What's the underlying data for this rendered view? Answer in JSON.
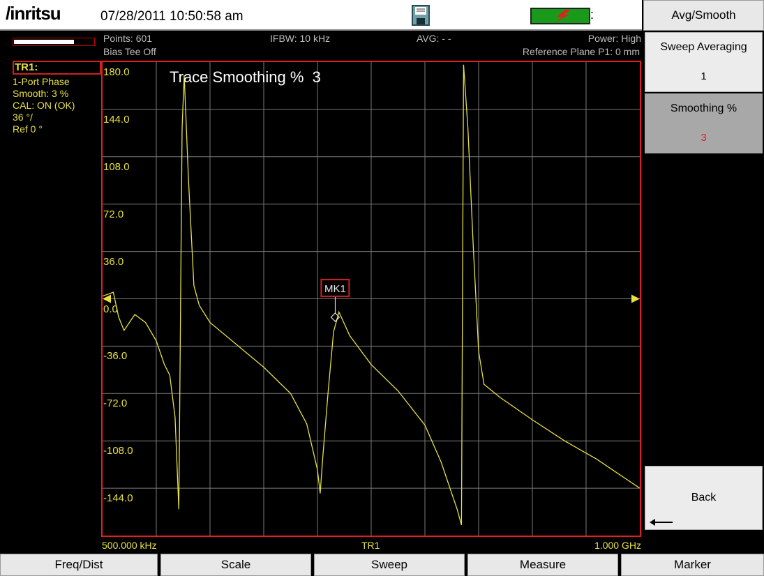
{
  "app": {
    "brand": "/inritsu",
    "datetime": "07/28/2011 10:50:58 am"
  },
  "header": {
    "points": "Points: 601",
    "bias_tee": "Bias Tee Off",
    "ifbw": "IFBW: 10 kHz",
    "avg": "AVG: - -",
    "power": "Power: High",
    "reference_plane": "Reference Plane P1: 0 mm"
  },
  "trace_info": {
    "trace": "TR1:",
    "measurement": "1-Port Phase",
    "smooth": "Smooth: 3 %",
    "cal": "CAL: ON (OK)",
    "scale": "36 °/",
    "ref": "Ref 0 °"
  },
  "softkeys": {
    "menu_title": "Avg/Smooth",
    "sweep_averaging_label": "Sweep Averaging",
    "sweep_averaging_value": "1",
    "smoothing_label": "Smoothing %",
    "smoothing_value": "3",
    "back_label": "Back"
  },
  "bottom_menu": [
    "Freq/Dist",
    "Scale",
    "Sweep",
    "Measure",
    "Marker"
  ],
  "chart_data": {
    "type": "line",
    "title": "Trace Smoothing %  3",
    "y_ticks": [
      "180.0",
      "144.0",
      "108.0",
      "72.0",
      "36.0",
      "0.0",
      "-36.0",
      "-72.0",
      "-108.0",
      "-144.0"
    ],
    "ylim": [
      -180,
      180
    ],
    "x_start_label": "500.000 kHz",
    "x_center_label": "TR1",
    "x_stop_label": "1.000 GHz",
    "grid": true,
    "reference_level": 0,
    "marker": {
      "label": "MK1",
      "x_fraction": 0.433,
      "y": -14
    },
    "series": [
      {
        "color": "#e8e040",
        "points": [
          [
            0.0,
            2
          ],
          [
            0.02,
            5
          ],
          [
            0.03,
            -14
          ],
          [
            0.04,
            -24
          ],
          [
            0.06,
            -12
          ],
          [
            0.08,
            -18
          ],
          [
            0.1,
            -32
          ],
          [
            0.115,
            -50
          ],
          [
            0.125,
            -58
          ],
          [
            0.135,
            -90
          ],
          [
            0.142,
            -160
          ],
          [
            0.148,
            130
          ],
          [
            0.152,
            170
          ],
          [
            0.16,
            90
          ],
          [
            0.17,
            10
          ],
          [
            0.18,
            -5
          ],
          [
            0.2,
            -18
          ],
          [
            0.25,
            -35
          ],
          [
            0.3,
            -52
          ],
          [
            0.35,
            -72
          ],
          [
            0.38,
            -95
          ],
          [
            0.4,
            -130
          ],
          [
            0.405,
            -148
          ],
          [
            0.41,
            -120
          ],
          [
            0.42,
            -70
          ],
          [
            0.43,
            -25
          ],
          [
            0.44,
            -10
          ],
          [
            0.46,
            -28
          ],
          [
            0.5,
            -50
          ],
          [
            0.55,
            -70
          ],
          [
            0.6,
            -96
          ],
          [
            0.63,
            -124
          ],
          [
            0.66,
            -160
          ],
          [
            0.668,
            -172
          ],
          [
            0.672,
            178
          ],
          [
            0.68,
            130
          ],
          [
            0.69,
            40
          ],
          [
            0.7,
            -40
          ],
          [
            0.71,
            -65
          ],
          [
            0.74,
            -75
          ],
          [
            0.8,
            -92
          ],
          [
            0.86,
            -108
          ],
          [
            0.92,
            -122
          ],
          [
            1.0,
            -144
          ]
        ]
      }
    ]
  }
}
